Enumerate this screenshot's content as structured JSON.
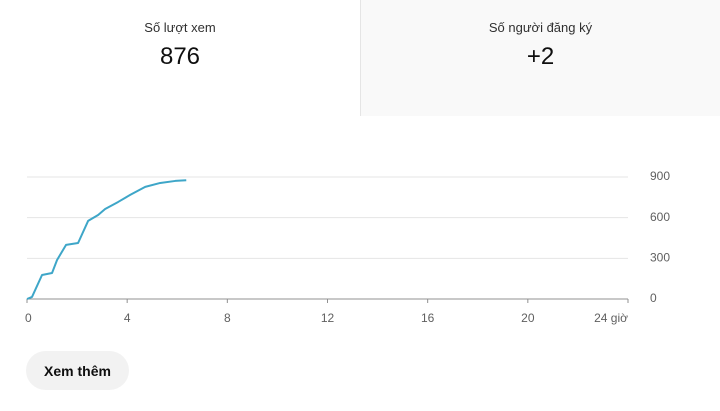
{
  "cards": [
    {
      "label": "Số lượt xem",
      "value": "876"
    },
    {
      "label": "Số người đăng ký",
      "value": "+2"
    }
  ],
  "chart_data": {
    "type": "line",
    "x": [
      0,
      0.2,
      0.6,
      1.0,
      1.2,
      1.56,
      2.04,
      2.44,
      2.84,
      3.12,
      3.64,
      4.12,
      4.72,
      5.32,
      5.92,
      6.36
    ],
    "values": [
      0,
      15,
      177,
      192,
      288,
      399,
      413,
      576,
      620,
      664,
      716,
      768,
      827,
      856,
      871,
      876
    ],
    "color": "#3ea6c8",
    "xlim": [
      0,
      24
    ],
    "xticks": [
      0,
      4,
      8,
      12,
      16,
      20,
      {
        "value": 24,
        "label": "24 giờ"
      }
    ],
    "ylim": [
      0,
      900
    ],
    "yticks": [
      0,
      300,
      600,
      900
    ],
    "grid": true
  },
  "button": "Xem thêm"
}
